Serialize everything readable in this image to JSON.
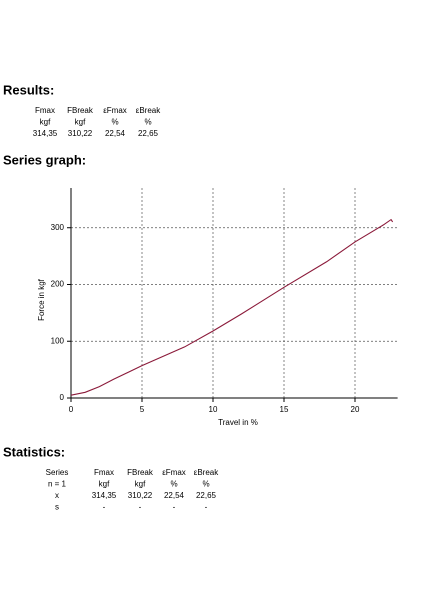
{
  "results": {
    "title": "Results:",
    "headers": [
      "Fmax",
      "FBreak",
      "εFmax",
      "εBreak"
    ],
    "units": [
      "kgf",
      "kgf",
      "%",
      "%"
    ],
    "values": [
      "314,35",
      "310,22",
      "22,54",
      "22,65"
    ]
  },
  "chart_data": {
    "type": "line",
    "title": "Series graph:",
    "x_label": "Travel in %",
    "y_label": "Force in kgf",
    "x": [
      0,
      1,
      2,
      3,
      5,
      8,
      10,
      12,
      15,
      18,
      20,
      22,
      22.54,
      22.65
    ],
    "series": [
      {
        "name": "Series",
        "color": "#8b1a3a",
        "values": [
          5,
          10,
          20,
          33,
          57,
          90,
          118,
          148,
          195,
          240,
          275,
          305,
          314.35,
          310.22
        ]
      }
    ],
    "xlim": [
      0,
      23
    ],
    "ylim": [
      0,
      370
    ],
    "xticks": [
      0,
      5,
      10,
      15,
      20
    ],
    "yticks": [
      0,
      100,
      200,
      300
    ],
    "grid": true
  },
  "statistics": {
    "title": "Statistics:",
    "headers": [
      "Series",
      "Fmax",
      "FBreak",
      "εFmax",
      "εBreak"
    ],
    "rows": [
      [
        "n = 1",
        "kgf",
        "kgf",
        "%",
        "%"
      ],
      [
        "x",
        "314,35",
        "310,22",
        "22,54",
        "22,65"
      ],
      [
        "s",
        "-",
        "-",
        "-",
        "-"
      ]
    ]
  }
}
